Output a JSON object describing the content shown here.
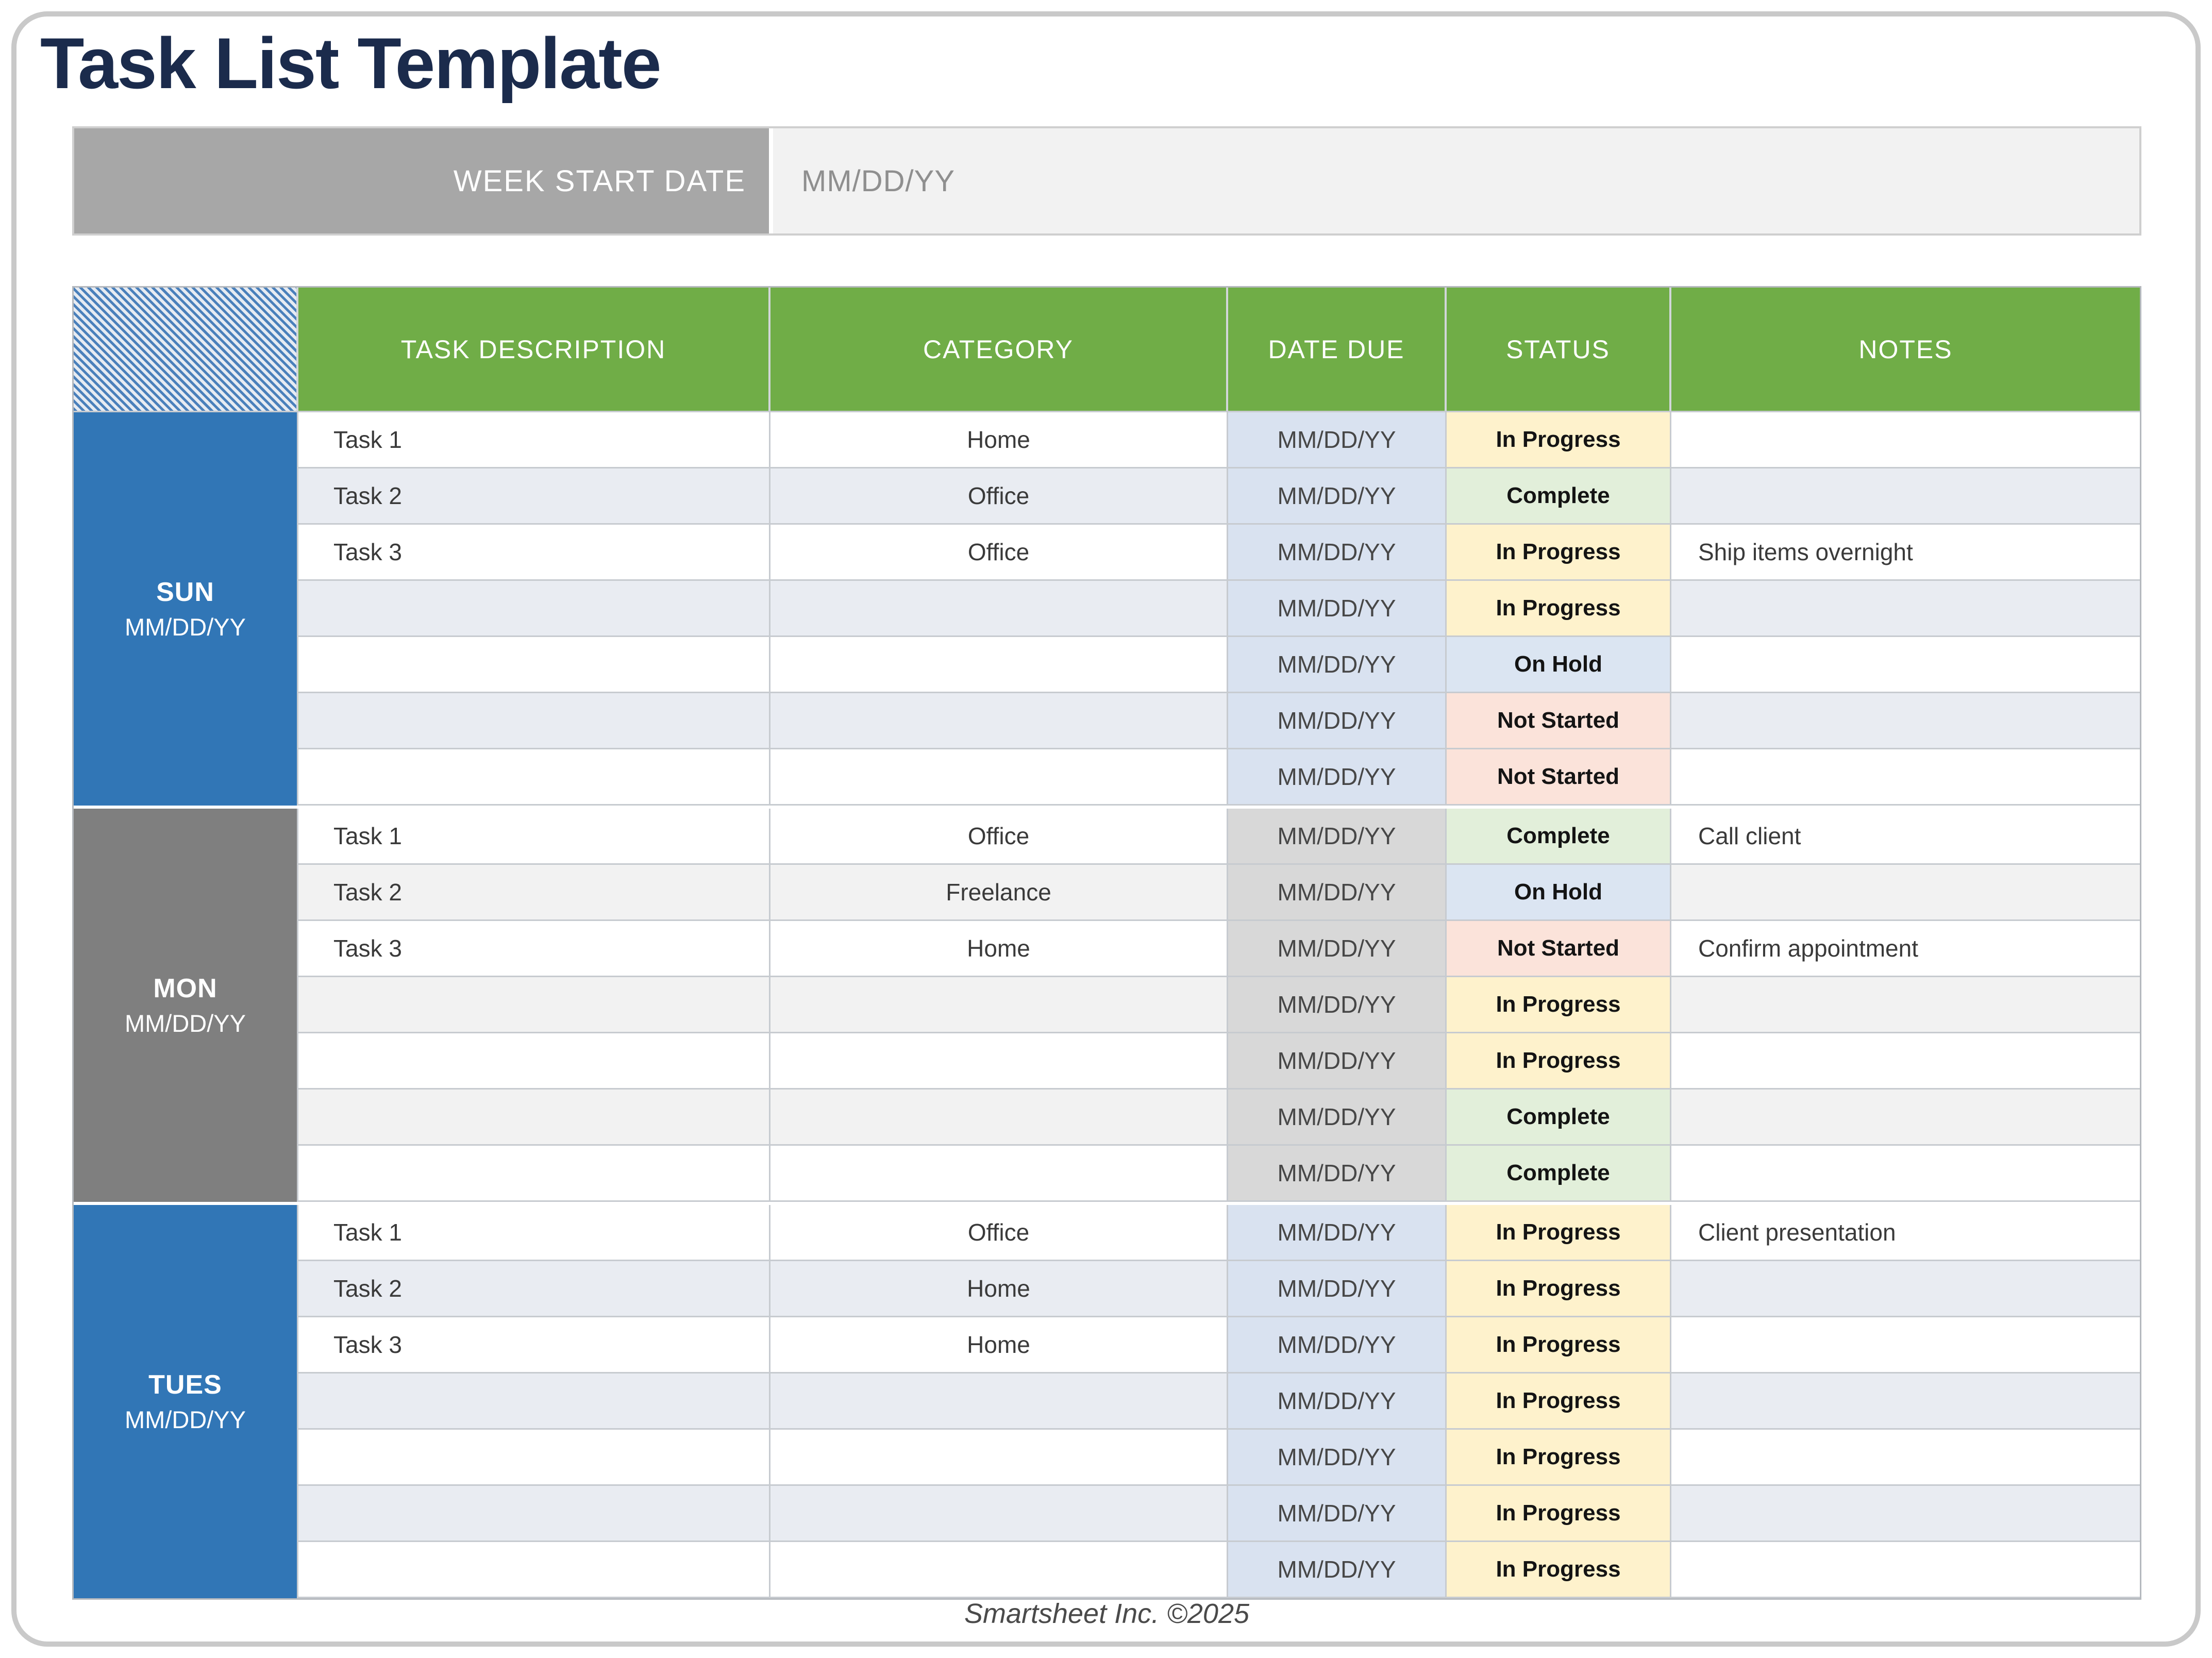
{
  "page": {
    "title": "Task List Template",
    "footer": "Smartsheet Inc. ©2025"
  },
  "week_bar": {
    "label": "WEEK START DATE",
    "value": "MM/DD/YY"
  },
  "colors": {
    "title_navy": "#1b2b4c",
    "header_green": "#70ad47",
    "day_blue": "#3176b6",
    "day_gray": "#7f7f7f",
    "status_in_progress": "#fef2cc",
    "status_complete": "#e2efda",
    "status_on_hold": "#dbe5f2",
    "status_not_started": "#fbe3da",
    "date_col_blue": "#d9e2f0",
    "date_col_gray": "#d8d8d8"
  },
  "table": {
    "headers": {
      "task": "TASK DESCRIPTION",
      "category": "CATEGORY",
      "date": "DATE DUE",
      "status": "STATUS",
      "notes": "NOTES"
    },
    "days": [
      {
        "name": "SUN",
        "date": "MM/DD/YY",
        "rows": [
          {
            "task": "Task 1",
            "category": "Home",
            "date": "MM/DD/YY",
            "status": "In Progress",
            "notes": ""
          },
          {
            "task": "Task 2",
            "category": "Office",
            "date": "MM/DD/YY",
            "status": "Complete",
            "notes": ""
          },
          {
            "task": "Task 3",
            "category": "Office",
            "date": "MM/DD/YY",
            "status": "In Progress",
            "notes": "Ship items overnight"
          },
          {
            "task": "",
            "category": "",
            "date": "MM/DD/YY",
            "status": "In Progress",
            "notes": ""
          },
          {
            "task": "",
            "category": "",
            "date": "MM/DD/YY",
            "status": "On Hold",
            "notes": ""
          },
          {
            "task": "",
            "category": "",
            "date": "MM/DD/YY",
            "status": "Not Started",
            "notes": ""
          },
          {
            "task": "",
            "category": "",
            "date": "MM/DD/YY",
            "status": "Not Started",
            "notes": ""
          }
        ]
      },
      {
        "name": "MON",
        "date": "MM/DD/YY",
        "rows": [
          {
            "task": "Task 1",
            "category": "Office",
            "date": "MM/DD/YY",
            "status": "Complete",
            "notes": "Call client"
          },
          {
            "task": "Task 2",
            "category": "Freelance",
            "date": "MM/DD/YY",
            "status": "On Hold",
            "notes": ""
          },
          {
            "task": "Task 3",
            "category": "Home",
            "date": "MM/DD/YY",
            "status": "Not Started",
            "notes": "Confirm appointment"
          },
          {
            "task": "",
            "category": "",
            "date": "MM/DD/YY",
            "status": "In Progress",
            "notes": ""
          },
          {
            "task": "",
            "category": "",
            "date": "MM/DD/YY",
            "status": "In Progress",
            "notes": ""
          },
          {
            "task": "",
            "category": "",
            "date": "MM/DD/YY",
            "status": "Complete",
            "notes": ""
          },
          {
            "task": "",
            "category": "",
            "date": "MM/DD/YY",
            "status": "Complete",
            "notes": ""
          }
        ]
      },
      {
        "name": "TUES",
        "date": "MM/DD/YY",
        "rows": [
          {
            "task": "Task 1",
            "category": "Office",
            "date": "MM/DD/YY",
            "status": "In Progress",
            "notes": "Client presentation"
          },
          {
            "task": "Task 2",
            "category": "Home",
            "date": "MM/DD/YY",
            "status": "In Progress",
            "notes": ""
          },
          {
            "task": "Task 3",
            "category": "Home",
            "date": "MM/DD/YY",
            "status": "In Progress",
            "notes": ""
          },
          {
            "task": "",
            "category": "",
            "date": "MM/DD/YY",
            "status": "In Progress",
            "notes": ""
          },
          {
            "task": "",
            "category": "",
            "date": "MM/DD/YY",
            "status": "In Progress",
            "notes": ""
          },
          {
            "task": "",
            "category": "",
            "date": "MM/DD/YY",
            "status": "In Progress",
            "notes": ""
          },
          {
            "task": "",
            "category": "",
            "date": "MM/DD/YY",
            "status": "In Progress",
            "notes": ""
          }
        ]
      }
    ]
  }
}
